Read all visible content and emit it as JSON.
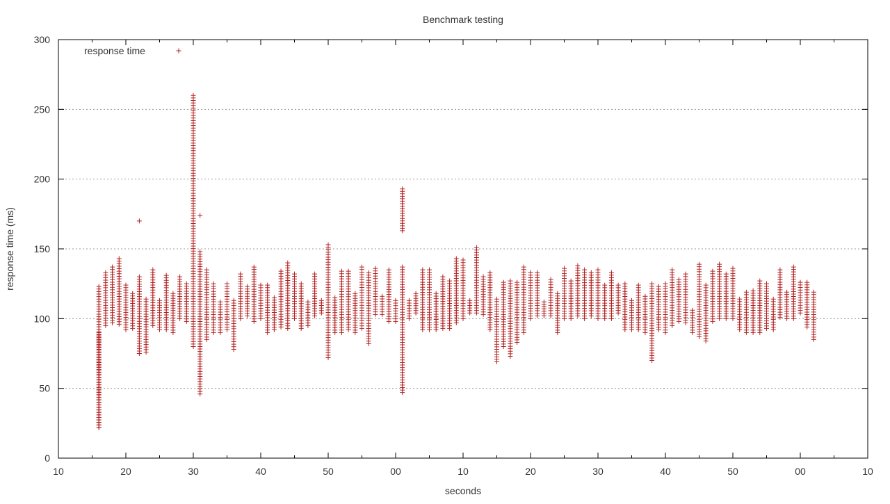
{
  "chart_data": {
    "type": "scatter",
    "title": "Benchmark testing",
    "xlabel": "seconds",
    "ylabel": "response time (ms)",
    "xlim": [
      10,
      130
    ],
    "ylim": [
      0,
      300
    ],
    "x_unit": "seconds since 12:10 (clock axis, wraps at 60)",
    "x_ticks": [
      {
        "value": 10,
        "label": "10"
      },
      {
        "value": 20,
        "label": "20"
      },
      {
        "value": 30,
        "label": "30"
      },
      {
        "value": 40,
        "label": "40"
      },
      {
        "value": 50,
        "label": "50"
      },
      {
        "value": 60,
        "label": "00"
      },
      {
        "value": 70,
        "label": "10"
      },
      {
        "value": 80,
        "label": "20"
      },
      {
        "value": 90,
        "label": "30"
      },
      {
        "value": 100,
        "label": "40"
      },
      {
        "value": 110,
        "label": "50"
      },
      {
        "value": 120,
        "label": "00"
      },
      {
        "value": 130,
        "label": "10"
      }
    ],
    "x_minor_step": 5,
    "y_ticks": [
      0,
      50,
      100,
      150,
      200,
      250,
      300
    ],
    "grid": "y-major dotted",
    "legend": "top-left",
    "marker": "+",
    "series": [
      {
        "name": "response time",
        "color": "#b22222",
        "clusters": [
          [
            16,
            22,
            123
          ],
          [
            16,
            22,
            90
          ],
          [
            17,
            95,
            133
          ],
          [
            18,
            97,
            137
          ],
          [
            19,
            96,
            143
          ],
          [
            20,
            92,
            124
          ],
          [
            21,
            93,
            118
          ],
          [
            22,
            75,
            130
          ],
          [
            22,
            170,
            170
          ],
          [
            23,
            76,
            114
          ],
          [
            24,
            95,
            135
          ],
          [
            25,
            92,
            113
          ],
          [
            26,
            92,
            131
          ],
          [
            27,
            90,
            118
          ],
          [
            28,
            100,
            130
          ],
          [
            29,
            98,
            125
          ],
          [
            30,
            80,
            260
          ],
          [
            31,
            46,
            148
          ],
          [
            31,
            174,
            174
          ],
          [
            32,
            85,
            135
          ],
          [
            33,
            90,
            125
          ],
          [
            34,
            90,
            112
          ],
          [
            35,
            92,
            125
          ],
          [
            36,
            78,
            113
          ],
          [
            37,
            100,
            132
          ],
          [
            38,
            102,
            123
          ],
          [
            39,
            98,
            137
          ],
          [
            40,
            100,
            124
          ],
          [
            41,
            90,
            124
          ],
          [
            42,
            92,
            115
          ],
          [
            43,
            94,
            134
          ],
          [
            44,
            93,
            140
          ],
          [
            45,
            100,
            132
          ],
          [
            46,
            93,
            125
          ],
          [
            47,
            95,
            112
          ],
          [
            48,
            102,
            132
          ],
          [
            49,
            104,
            113
          ],
          [
            50,
            72,
            153
          ],
          [
            51,
            90,
            115
          ],
          [
            52,
            90,
            134
          ],
          [
            53,
            92,
            134
          ],
          [
            54,
            90,
            118
          ],
          [
            55,
            93,
            137
          ],
          [
            56,
            82,
            133
          ],
          [
            57,
            103,
            136
          ],
          [
            58,
            103,
            116
          ],
          [
            59,
            98,
            135
          ],
          [
            60,
            98,
            113
          ],
          [
            61,
            47,
            137
          ],
          [
            61,
            163,
            193
          ],
          [
            62,
            100,
            113
          ],
          [
            63,
            104,
            118
          ],
          [
            64,
            92,
            135
          ],
          [
            65,
            92,
            135
          ],
          [
            66,
            92,
            118
          ],
          [
            67,
            93,
            130
          ],
          [
            68,
            93,
            127
          ],
          [
            69,
            97,
            143
          ],
          [
            70,
            100,
            142
          ],
          [
            71,
            104,
            113
          ],
          [
            72,
            104,
            151
          ],
          [
            73,
            103,
            130
          ],
          [
            74,
            92,
            133
          ],
          [
            75,
            69,
            114
          ],
          [
            76,
            80,
            126
          ],
          [
            77,
            73,
            127
          ],
          [
            78,
            83,
            126
          ],
          [
            79,
            90,
            137
          ],
          [
            80,
            100,
            133
          ],
          [
            81,
            102,
            133
          ],
          [
            82,
            102,
            112
          ],
          [
            83,
            102,
            128
          ],
          [
            84,
            90,
            118
          ],
          [
            85,
            100,
            136
          ],
          [
            86,
            100,
            127
          ],
          [
            87,
            102,
            138
          ],
          [
            88,
            100,
            135
          ],
          [
            89,
            102,
            133
          ],
          [
            90,
            100,
            135
          ],
          [
            91,
            100,
            124
          ],
          [
            92,
            100,
            133
          ],
          [
            93,
            104,
            124
          ],
          [
            94,
            92,
            125
          ],
          [
            95,
            92,
            113
          ],
          [
            96,
            92,
            124
          ],
          [
            97,
            90,
            116
          ],
          [
            98,
            70,
            125
          ],
          [
            99,
            92,
            123
          ],
          [
            100,
            90,
            125
          ],
          [
            101,
            95,
            135
          ],
          [
            102,
            98,
            128
          ],
          [
            103,
            97,
            132
          ],
          [
            104,
            90,
            106
          ],
          [
            105,
            87,
            139
          ],
          [
            106,
            84,
            124
          ],
          [
            107,
            98,
            134
          ],
          [
            108,
            100,
            139
          ],
          [
            109,
            100,
            132
          ],
          [
            110,
            100,
            136
          ],
          [
            111,
            92,
            114
          ],
          [
            112,
            90,
            119
          ],
          [
            113,
            90,
            120
          ],
          [
            114,
            90,
            127
          ],
          [
            115,
            93,
            125
          ],
          [
            116,
            92,
            114
          ],
          [
            117,
            101,
            135
          ],
          [
            118,
            100,
            119
          ],
          [
            119,
            100,
            137
          ],
          [
            120,
            104,
            126
          ],
          [
            121,
            94,
            126
          ],
          [
            122,
            85,
            119
          ]
        ]
      }
    ]
  }
}
